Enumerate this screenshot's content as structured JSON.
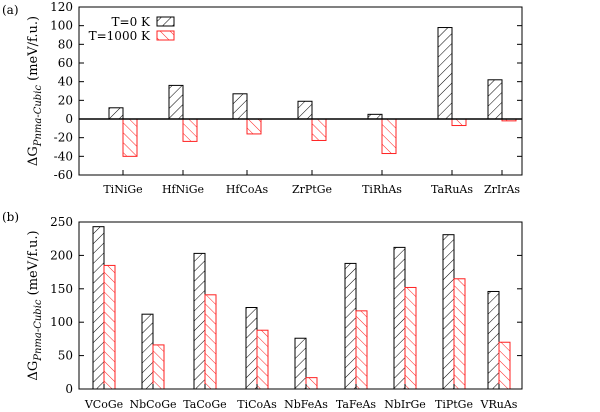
{
  "colors": {
    "t0": "#000000",
    "t1000": "#ff2020"
  },
  "chart_data": [
    {
      "type": "bar",
      "panel_label": "(a)",
      "ylabel_main": "ΔG",
      "ylabel_sub": "Pnma-Cubic",
      "ylabel_unit": " (meV/f.u.)",
      "ylim": [
        -60,
        120
      ],
      "yticks": [
        -60,
        -40,
        -20,
        0,
        20,
        40,
        60,
        80,
        100,
        120
      ],
      "categories": [
        "TiNiGe",
        "HfNiGe",
        "HfCoAs",
        "ZrPtGe",
        "TiRhAs",
        "TaRuAs",
        "ZrIrAs"
      ],
      "series": [
        {
          "name": "T=0 K",
          "values": [
            12,
            36,
            27,
            19,
            5,
            98,
            42
          ]
        },
        {
          "name": "T=1000 K",
          "values": [
            -40,
            -24,
            -16,
            -23,
            -37,
            -7,
            -2
          ]
        }
      ],
      "legend": "top-left",
      "grid": false
    },
    {
      "type": "bar",
      "panel_label": "(b)",
      "ylabel_main": "ΔG",
      "ylabel_sub": "Pnma-Cubic",
      "ylabel_unit": " (meV/f.u.)",
      "ylim": [
        0,
        250
      ],
      "yticks": [
        0,
        50,
        100,
        150,
        200,
        250
      ],
      "categories": [
        "VCoGe",
        "NbCoGe",
        "TaCoGe",
        "TiCoAs",
        "NbFeAs",
        "TaFeAs",
        "NbIrGe",
        "TiPtGe",
        "VRuAs"
      ],
      "series": [
        {
          "name": "T=0 K",
          "values": [
            243,
            112,
            203,
            122,
            76,
            188,
            212,
            231,
            146
          ]
        },
        {
          "name": "T=1000 K",
          "values": [
            185,
            66,
            141,
            88,
            17,
            117,
            152,
            165,
            70
          ]
        }
      ],
      "grid": false
    }
  ]
}
